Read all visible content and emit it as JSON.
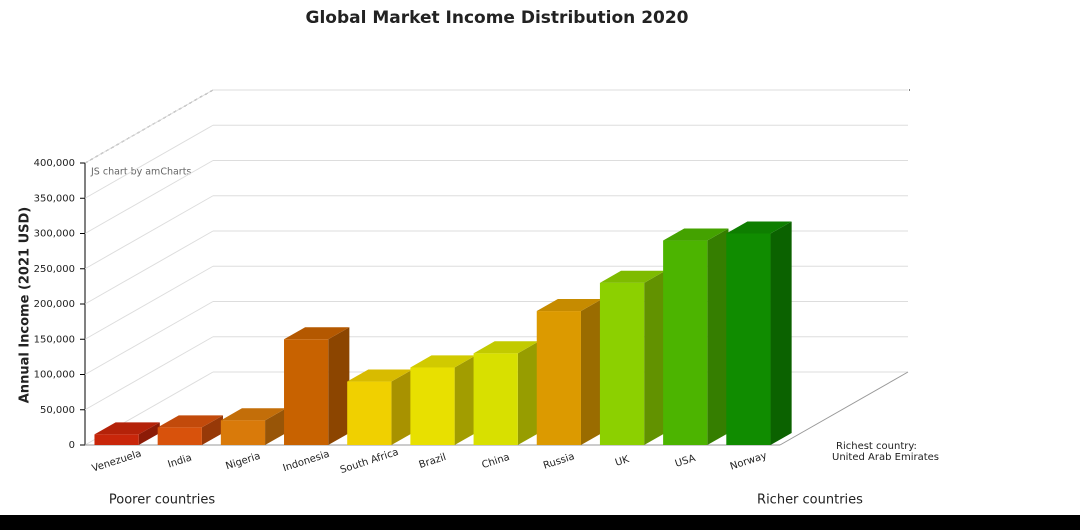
{
  "chart_data": {
    "type": "bar",
    "title": "Global Market Income Distribution 2020",
    "y_label": "Annual Income (2021 USD)",
    "credit": "JS chart by amCharts",
    "left_note": "Poorer countries",
    "right_note": "Richer countries",
    "annotation": [
      "Richest country:",
      "United Arab Emirates"
    ],
    "categories": [
      "Venezuela",
      "India",
      "Nigeria",
      "Indonesia",
      "South Africa",
      "Brazil",
      "China",
      "Russia",
      "UK",
      "USA",
      "Norway"
    ],
    "values": [
      15000,
      25000,
      35000,
      150000,
      90000,
      110000,
      130000,
      190000,
      230000,
      290000,
      300000
    ],
    "colors": [
      "#c8260a",
      "#d8520c",
      "#d97a0a",
      "#c86200",
      "#f0d000",
      "#e8e000",
      "#d8e000",
      "#dc9a00",
      "#8cd000",
      "#4cb400",
      "#108c00"
    ],
    "ylim": [
      0,
      400000
    ],
    "yticks": [
      0,
      {
        "value": 50000,
        "label": "50,000"
      },
      {
        "value": 100000,
        "label": "100,000"
      },
      {
        "value": 150000,
        "label": "150,000"
      },
      {
        "value": 200000,
        "label": "200,000"
      },
      {
        "value": 250000,
        "label": "250,000"
      },
      {
        "value": 300000,
        "label": "300,000"
      },
      {
        "value": 350000,
        "label": "350,000"
      },
      {
        "value": 400000,
        "label": "400,000"
      }
    ],
    "grid": true
  }
}
